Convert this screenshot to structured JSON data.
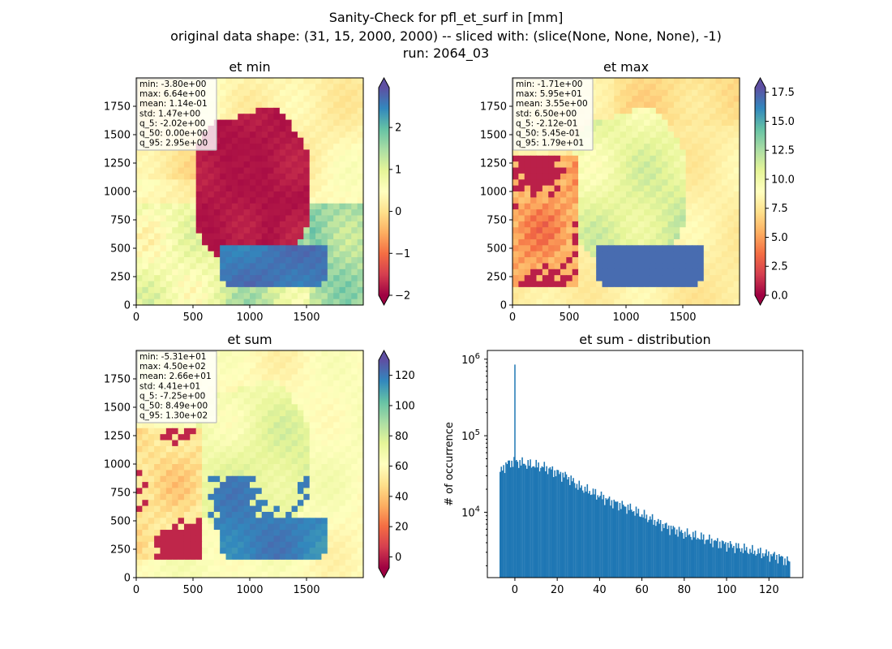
{
  "figure": {
    "title_lines": [
      "Sanity-Check for pfl_et_surf in [mm]",
      "original data shape: (31, 15, 2000, 2000) -- sliced with: (slice(None, None, None), -1)",
      "run: 2064_03"
    ]
  },
  "colormap": {
    "name": "Spectral",
    "stops": [
      "#9e0142",
      "#d53e4f",
      "#f46d43",
      "#fdae61",
      "#fee08b",
      "#ffffbf",
      "#e6f598",
      "#abdda4",
      "#66c2a5",
      "#3288bd",
      "#5e4fa2"
    ],
    "under_color": "#9e0142",
    "over_color": "#5e4fa2"
  },
  "chart_data": [
    {
      "type": "heatmap",
      "title": "et min",
      "xlim": [
        0,
        2000
      ],
      "ylim": [
        0,
        2000
      ],
      "xticks": [
        "0",
        "500",
        "1000",
        "1500"
      ],
      "yticks": [
        "0",
        "250",
        "500",
        "750",
        "1000",
        "1250",
        "1500",
        "1750"
      ],
      "colorbar": {
        "vmin": -2,
        "vmax": 2.95,
        "ticks": [
          "−2",
          "−1",
          "0",
          "1",
          "2"
        ],
        "tick_values": [
          -2,
          -1,
          0,
          1,
          2
        ],
        "extend": "both"
      },
      "stats": [
        "min: -3.80e+00",
        "max: 6.64e+00",
        "mean: 1.14e-01",
        "std: 1.47e+00",
        "q_5: -2.02e+00",
        "q_50: 0.00e+00",
        "q_95: 2.95e+00"
      ]
    },
    {
      "type": "heatmap",
      "title": "et max",
      "xlim": [
        0,
        2000
      ],
      "ylim": [
        0,
        2000
      ],
      "xticks": [
        "0",
        "500",
        "1000",
        "1500"
      ],
      "yticks": [
        "0",
        "250",
        "500",
        "750",
        "1000",
        "1250",
        "1500",
        "1750"
      ],
      "colorbar": {
        "vmin": 0,
        "vmax": 17.9,
        "ticks": [
          "0.0",
          "2.5",
          "5.0",
          "7.5",
          "10.0",
          "12.5",
          "15.0",
          "17.5"
        ],
        "tick_values": [
          0,
          2.5,
          5,
          7.5,
          10,
          12.5,
          15,
          17.5
        ],
        "extend": "both"
      },
      "stats": [
        "min: -1.71e+00",
        "max: 5.95e+01",
        "mean: 3.55e+00",
        "std: 6.50e+00",
        "q_5: -2.12e-01",
        "q_50: 5.45e-01",
        "q_95: 1.79e+01"
      ]
    },
    {
      "type": "heatmap",
      "title": "et sum",
      "xlim": [
        0,
        2000
      ],
      "ylim": [
        0,
        2000
      ],
      "xticks": [
        "0",
        "500",
        "1000",
        "1500"
      ],
      "yticks": [
        "0",
        "250",
        "500",
        "750",
        "1000",
        "1250",
        "1500",
        "1750"
      ],
      "colorbar": {
        "vmin": -7.25,
        "vmax": 130,
        "ticks": [
          "0",
          "20",
          "40",
          "60",
          "80",
          "100",
          "120"
        ],
        "tick_values": [
          0,
          20,
          40,
          60,
          80,
          100,
          120
        ],
        "extend": "both"
      },
      "stats": [
        "min: -5.31e+01",
        "max: 4.50e+02",
        "mean: 2.66e+01",
        "std: 4.41e+01",
        "q_5: -7.25e+00",
        "q_50: 8.49e+00",
        "q_95: 1.30e+02"
      ]
    },
    {
      "type": "bar",
      "title": "et sum - distribution",
      "ylabel": "# of occurrence",
      "xlabel": "",
      "yscale": "log",
      "xlim": [
        -13,
        136
      ],
      "ylim": [
        1400,
        1300000
      ],
      "xticks": [
        0,
        20,
        40,
        60,
        80,
        100,
        120
      ],
      "yticks": [
        10000,
        100000,
        1000000
      ],
      "color": "#1f77b4",
      "bins": {
        "start": -7.25,
        "end": 130,
        "count": 250
      },
      "envelope": [
        [
          -7.25,
          30000
        ],
        [
          -6,
          38000
        ],
        [
          -3,
          44000
        ],
        [
          -1,
          46000
        ],
        [
          1,
          46000
        ],
        [
          5,
          43000
        ],
        [
          10,
          41000
        ],
        [
          15,
          38000
        ],
        [
          20,
          33000
        ],
        [
          25,
          29000
        ],
        [
          30,
          22000
        ],
        [
          35,
          19000
        ],
        [
          40,
          16500
        ],
        [
          45,
          14000
        ],
        [
          50,
          12500
        ],
        [
          55,
          11000
        ],
        [
          60,
          9300
        ],
        [
          65,
          8000
        ],
        [
          70,
          6800
        ],
        [
          75,
          6000
        ],
        [
          80,
          5300
        ],
        [
          85,
          4900
        ],
        [
          90,
          4500
        ],
        [
          95,
          4100
        ],
        [
          100,
          3800
        ],
        [
          105,
          3500
        ],
        [
          110,
          3200
        ],
        [
          115,
          3000
        ],
        [
          120,
          2800
        ],
        [
          125,
          2600
        ],
        [
          130,
          2200
        ]
      ],
      "spike": {
        "x": 0,
        "value": 850000
      }
    }
  ]
}
